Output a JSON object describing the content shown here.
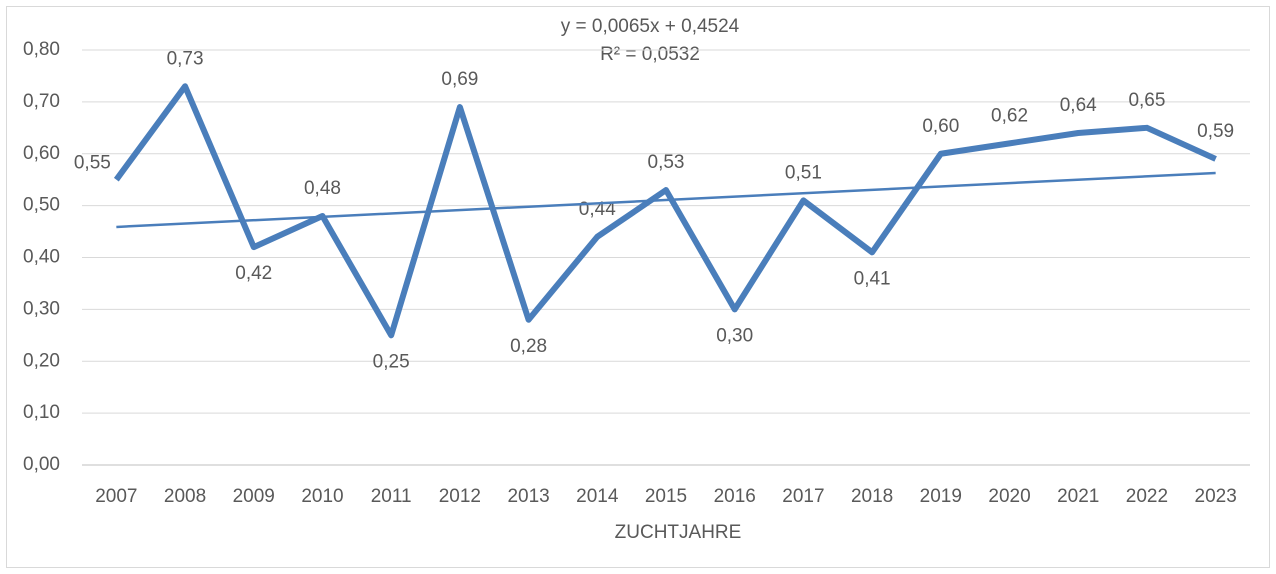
{
  "chart_data": {
    "type": "line",
    "categories": [
      "2007",
      "2008",
      "2009",
      "2010",
      "2011",
      "2012",
      "2013",
      "2014",
      "2015",
      "2016",
      "2017",
      "2018",
      "2019",
      "2020",
      "2021",
      "2022",
      "2023"
    ],
    "series": [
      {
        "color": "#4a7ebb",
        "values": [
          0.55,
          0.73,
          0.42,
          0.48,
          0.25,
          0.69,
          0.28,
          0.44,
          0.53,
          0.3,
          0.51,
          0.41,
          0.6,
          0.62,
          0.64,
          0.65,
          0.59
        ],
        "value_labels": [
          "0,55",
          "0,73",
          "0,42",
          "0,48",
          "0,25",
          "0,69",
          "0,28",
          "0,44",
          "0,53",
          "0,30",
          "0,51",
          "0,41",
          "0,60",
          "0,62",
          "0,64",
          "0,65",
          "0,59"
        ]
      }
    ],
    "ylim": [
      0,
      0.8
    ],
    "yticks": [
      {
        "value": 0,
        "label": "0,00"
      },
      {
        "value": 0.1,
        "label": "0,10"
      },
      {
        "value": 0.2,
        "label": "0,20"
      },
      {
        "value": 0.3,
        "label": "0,30"
      },
      {
        "value": 0.4,
        "label": "0,40"
      },
      {
        "value": 0.5,
        "label": "0,50"
      },
      {
        "value": 0.6,
        "label": "0,60"
      },
      {
        "value": 0.7,
        "label": "0,70"
      },
      {
        "value": 0.8,
        "label": "0,80"
      }
    ],
    "grid": true,
    "x_label": "ZUCHTJAHRE",
    "trendline": {
      "equation": "y = 0,0065x + 0,4524",
      "r2_label": "R² = 0,0532",
      "slope": 0.0065,
      "intercept": 0.4524,
      "color": "#4a7ebb"
    }
  }
}
